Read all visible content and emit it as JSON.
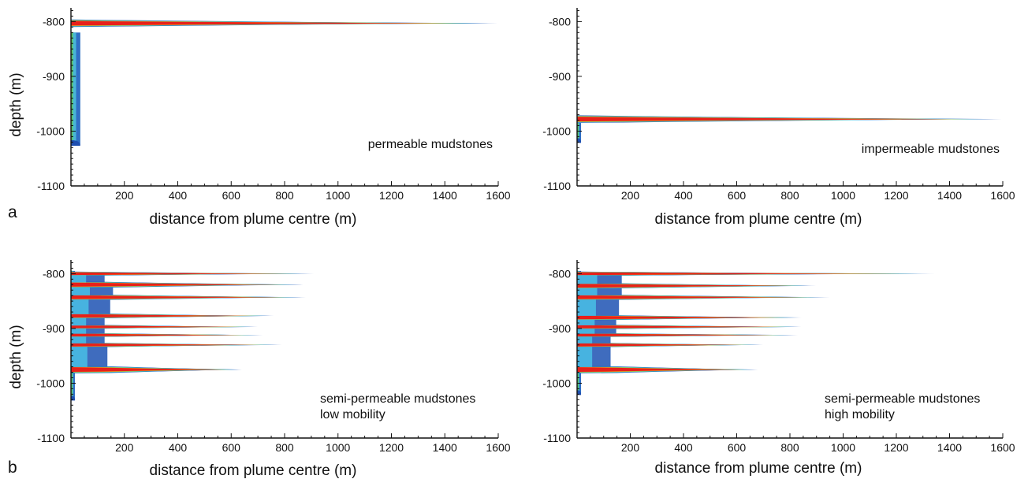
{
  "panel_letters": [
    "a",
    "b"
  ],
  "chart_data": [
    {
      "type": "area",
      "xlabel": "distance from plume centre (m)",
      "ylabel": "depth (m)",
      "annotation": [
        "permeable mudstones"
      ],
      "xlim": [
        0,
        1600
      ],
      "ylim": [
        -1100,
        -775
      ],
      "x_ticks": [
        200,
        400,
        600,
        800,
        1000,
        1200,
        1400,
        1600
      ],
      "y_ticks": [
        -800,
        -900,
        -1000,
        -1100
      ],
      "base_column": {
        "top": -820,
        "bottom": -1025,
        "width": 35
      },
      "fingers": [
        {
          "depth": -803,
          "thickness": 12,
          "length": 1600,
          "core": 140
        }
      ]
    },
    {
      "type": "area",
      "xlabel": "distance from plume centre (m)",
      "ylabel": "",
      "annotation": [
        "impermeable mudstones"
      ],
      "xlim": [
        0,
        1600
      ],
      "ylim": [
        -1100,
        -775
      ],
      "x_ticks": [
        200,
        400,
        600,
        800,
        1000,
        1200,
        1400,
        1600
      ],
      "y_ticks": [
        -800,
        -900,
        -1000,
        -1100
      ],
      "base_column": {
        "top": -985,
        "bottom": -1020,
        "width": 15
      },
      "fingers": [
        {
          "depth": -978,
          "thickness": 12,
          "length": 1600,
          "core": 170
        }
      ]
    },
    {
      "type": "area",
      "xlabel": "distance from plume centre (m)",
      "ylabel": "depth (m)",
      "annotation": [
        "semi-permeable mudstones",
        "low mobility"
      ],
      "xlim": [
        0,
        1600
      ],
      "ylim": [
        -1100,
        -775
      ],
      "x_ticks": [
        200,
        400,
        600,
        800,
        1000,
        1200,
        1400,
        1600
      ],
      "y_ticks": [
        -800,
        -900,
        -1000,
        -1100
      ],
      "base_column": {
        "top": -795,
        "bottom": -1030,
        "width": 15
      },
      "fingers": [
        {
          "depth": -800,
          "thickness": 4,
          "length": 910,
          "core": 120
        },
        {
          "depth": -820,
          "thickness": 10,
          "length": 870,
          "core": 150
        },
        {
          "depth": -843,
          "thickness": 9,
          "length": 880,
          "core": 150
        },
        {
          "depth": -877,
          "thickness": 8,
          "length": 760,
          "core": 140
        },
        {
          "depth": -897,
          "thickness": 6,
          "length": 700,
          "core": 120
        },
        {
          "depth": -912,
          "thickness": 6,
          "length": 720,
          "core": 120
        },
        {
          "depth": -930,
          "thickness": 7,
          "length": 790,
          "core": 130
        },
        {
          "depth": -975,
          "thickness": 12,
          "length": 640,
          "core": 150
        }
      ]
    },
    {
      "type": "area",
      "xlabel": "distance from plume centre (m)",
      "ylabel": "",
      "annotation": [
        "semi-permeable mudstones",
        "high mobility"
      ],
      "xlim": [
        0,
        1600
      ],
      "ylim": [
        -1100,
        -775
      ],
      "x_ticks": [
        200,
        400,
        600,
        800,
        1000,
        1200,
        1400,
        1600
      ],
      "y_ticks": [
        -800,
        -900,
        -1000,
        -1100
      ],
      "base_column": {
        "top": -795,
        "bottom": -1020,
        "width": 15
      },
      "fingers": [
        {
          "depth": -800,
          "thickness": 5,
          "length": 1350,
          "core": 200
        },
        {
          "depth": -822,
          "thickness": 9,
          "length": 900,
          "core": 160
        },
        {
          "depth": -843,
          "thickness": 9,
          "length": 950,
          "core": 160
        },
        {
          "depth": -880,
          "thickness": 8,
          "length": 850,
          "core": 150
        },
        {
          "depth": -897,
          "thickness": 7,
          "length": 850,
          "core": 140
        },
        {
          "depth": -912,
          "thickness": 6,
          "length": 830,
          "core": 140
        },
        {
          "depth": -930,
          "thickness": 7,
          "length": 700,
          "core": 120
        },
        {
          "depth": -975,
          "thickness": 12,
          "length": 680,
          "core": 150
        }
      ]
    }
  ]
}
